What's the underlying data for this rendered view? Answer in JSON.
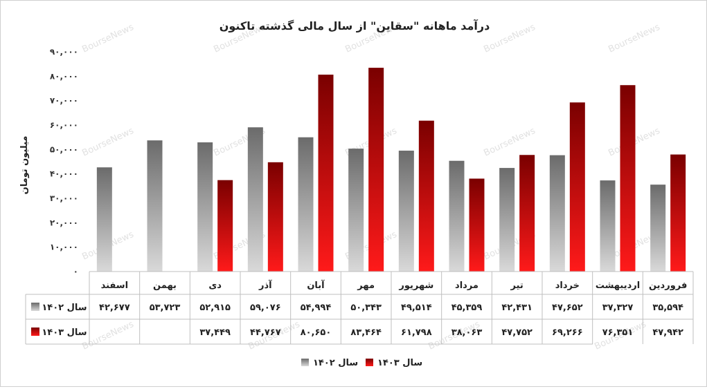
{
  "chart_data": {
    "type": "bar",
    "title": "درآمد ماهانه \"سقاین\" از سال مالی گذشته تاکنون",
    "ylabel": "میلیون تومان",
    "xlabel": "",
    "ylim": [
      0,
      90000
    ],
    "yticks": [
      0,
      10000,
      20000,
      30000,
      40000,
      50000,
      60000,
      70000,
      80000,
      90000
    ],
    "ytick_labels": [
      "۰",
      "۱۰,۰۰۰",
      "۲۰,۰۰۰",
      "۳۰,۰۰۰",
      "۴۰,۰۰۰",
      "۵۰,۰۰۰",
      "۶۰,۰۰۰",
      "۷۰,۰۰۰",
      "۸۰,۰۰۰",
      "۹۰,۰۰۰"
    ],
    "categories": [
      "فروردین",
      "اردیبهشت",
      "خرداد",
      "تیر",
      "مرداد",
      "شهریور",
      "مهر",
      "آبان",
      "آذر",
      "دی",
      "بهمن",
      "اسفند"
    ],
    "series": [
      {
        "name": "سال ۱۴۰۲",
        "color": "#7f7f7f",
        "values": [
          35594,
          37327,
          47652,
          42431,
          45359,
          49514,
          50343,
          54994,
          59076,
          52915,
          53723,
          42677
        ],
        "labels": [
          "۳۵,۵۹۴",
          "۳۷,۳۲۷",
          "۴۷,۶۵۲",
          "۴۲,۴۳۱",
          "۴۵,۳۵۹",
          "۴۹,۵۱۴",
          "۵۰,۳۴۳",
          "۵۴,۹۹۴",
          "۵۹,۰۷۶",
          "۵۲,۹۱۵",
          "۵۳,۷۲۳",
          "۴۲,۶۷۷"
        ]
      },
      {
        "name": "سال ۱۴۰۳",
        "color": "#c00000",
        "values": [
          47942,
          76351,
          69266,
          47752,
          38063,
          61798,
          83464,
          80650,
          44767,
          37449,
          null,
          null
        ],
        "labels": [
          "۴۷,۹۴۲",
          "۷۶,۳۵۱",
          "۶۹,۲۶۶",
          "۴۷,۷۵۲",
          "۳۸,۰۶۳",
          "۶۱,۷۹۸",
          "۸۳,۴۶۴",
          "۸۰,۶۵۰",
          "۴۴,۷۶۷",
          "۳۷,۴۴۹",
          "",
          ""
        ]
      }
    ],
    "grid": false,
    "legend": "bottom",
    "data_table": true
  },
  "watermark": "BourseNews"
}
